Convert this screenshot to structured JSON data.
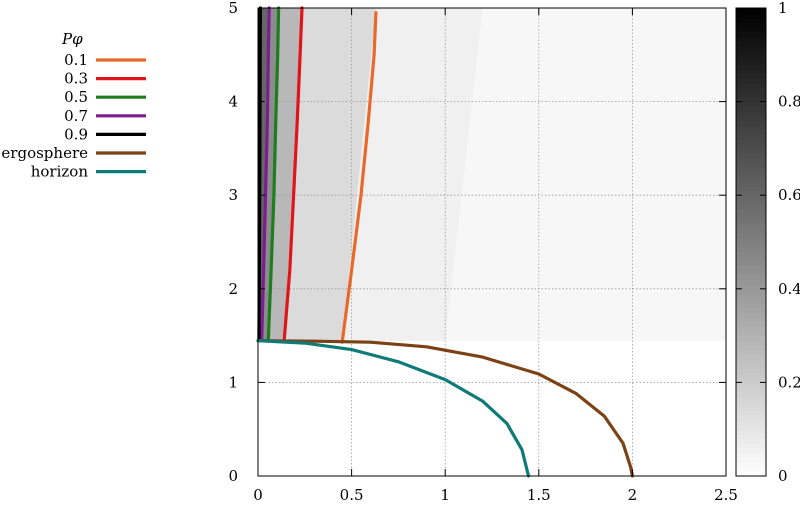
{
  "chart_data": {
    "type": "heatmap",
    "title": "",
    "xlabel": "",
    "ylabel": "",
    "xlim": [
      0,
      2.5
    ],
    "ylim": [
      0,
      5
    ],
    "x_ticks": [
      "0",
      "0.5",
      "1",
      "1.5",
      "2",
      "2.5"
    ],
    "y_ticks": [
      "0",
      "1",
      "2",
      "3",
      "4",
      "5"
    ],
    "grid": true,
    "colorbar": {
      "range": [
        0,
        1
      ],
      "ticks": [
        "0",
        "0.2",
        "0.4",
        "0.6",
        "0.8",
        "1"
      ],
      "palette": "white-to-black"
    },
    "legend": {
      "title": "Pφ",
      "placement": "outside-left",
      "entries": [
        {
          "label": "0.1",
          "color": "#e8692a"
        },
        {
          "label": "0.3",
          "color": "#e0141b"
        },
        {
          "label": "0.5",
          "color": "#1e7d1e"
        },
        {
          "label": "0.7",
          "color": "#7a1f8f"
        },
        {
          "label": "0.9",
          "color": "#000000"
        },
        {
          "label": "ergosphere",
          "color": "#7b4215"
        },
        {
          "label": "horizon",
          "color": "#0f7b78"
        }
      ]
    },
    "series": [
      {
        "name": "0.1",
        "color": "#e8692a",
        "points": [
          [
            0.45,
            1.43
          ],
          [
            0.5,
            2.2
          ],
          [
            0.55,
            3.0
          ],
          [
            0.59,
            3.8
          ],
          [
            0.62,
            4.5
          ],
          [
            0.63,
            4.95
          ]
        ]
      },
      {
        "name": "0.3",
        "color": "#e0141b",
        "points": [
          [
            0.14,
            1.45
          ],
          [
            0.17,
            2.2
          ],
          [
            0.19,
            3.0
          ],
          [
            0.21,
            3.8
          ],
          [
            0.225,
            4.5
          ],
          [
            0.235,
            5.0
          ]
        ]
      },
      {
        "name": "0.5",
        "color": "#1e7d1e",
        "points": [
          [
            0.055,
            1.45
          ],
          [
            0.07,
            2.2
          ],
          [
            0.085,
            3.0
          ],
          [
            0.095,
            3.8
          ],
          [
            0.105,
            4.5
          ],
          [
            0.11,
            5.0
          ]
        ]
      },
      {
        "name": "0.7",
        "color": "#7a1f8f",
        "points": [
          [
            0.02,
            1.45
          ],
          [
            0.03,
            2.2
          ],
          [
            0.04,
            3.0
          ],
          [
            0.05,
            3.8
          ],
          [
            0.055,
            4.5
          ],
          [
            0.06,
            5.0
          ]
        ]
      },
      {
        "name": "0.9",
        "color": "#000000",
        "points": [
          [
            0.005,
            1.45
          ],
          [
            0.008,
            2.5
          ],
          [
            0.01,
            3.5
          ],
          [
            0.012,
            4.5
          ],
          [
            0.013,
            5.0
          ]
        ]
      },
      {
        "name": "ergosphere",
        "color": "#7b4215",
        "points": [
          [
            0.0,
            1.445
          ],
          [
            0.3,
            1.44
          ],
          [
            0.6,
            1.43
          ],
          [
            0.9,
            1.38
          ],
          [
            1.2,
            1.27
          ],
          [
            1.5,
            1.09
          ],
          [
            1.7,
            0.88
          ],
          [
            1.85,
            0.64
          ],
          [
            1.95,
            0.35
          ],
          [
            1.99,
            0.1
          ],
          [
            2.0,
            0.0
          ]
        ]
      },
      {
        "name": "horizon",
        "color": "#0f7b78",
        "points": [
          [
            0.0,
            1.445
          ],
          [
            0.25,
            1.42
          ],
          [
            0.5,
            1.35
          ],
          [
            0.75,
            1.22
          ],
          [
            1.0,
            1.03
          ],
          [
            1.2,
            0.8
          ],
          [
            1.33,
            0.56
          ],
          [
            1.41,
            0.28
          ],
          [
            1.445,
            0.0
          ]
        ]
      }
    ],
    "shading_bands": [
      {
        "x_at_top": 0.02,
        "x_at_bottom": 0.005,
        "value": 0.92
      },
      {
        "x_at_top": 0.06,
        "x_at_bottom": 0.02,
        "value": 0.6
      },
      {
        "x_at_top": 0.11,
        "x_at_bottom": 0.055,
        "value": 0.45
      },
      {
        "x_at_top": 0.235,
        "x_at_bottom": 0.14,
        "value": 0.28
      },
      {
        "x_at_top": 0.63,
        "x_at_bottom": 0.45,
        "value": 0.14
      },
      {
        "x_at_top": 1.2,
        "x_at_bottom": 1.0,
        "value": 0.06
      },
      {
        "x_at_top": 2.5,
        "x_at_bottom": 2.5,
        "value": 0.03
      }
    ]
  }
}
